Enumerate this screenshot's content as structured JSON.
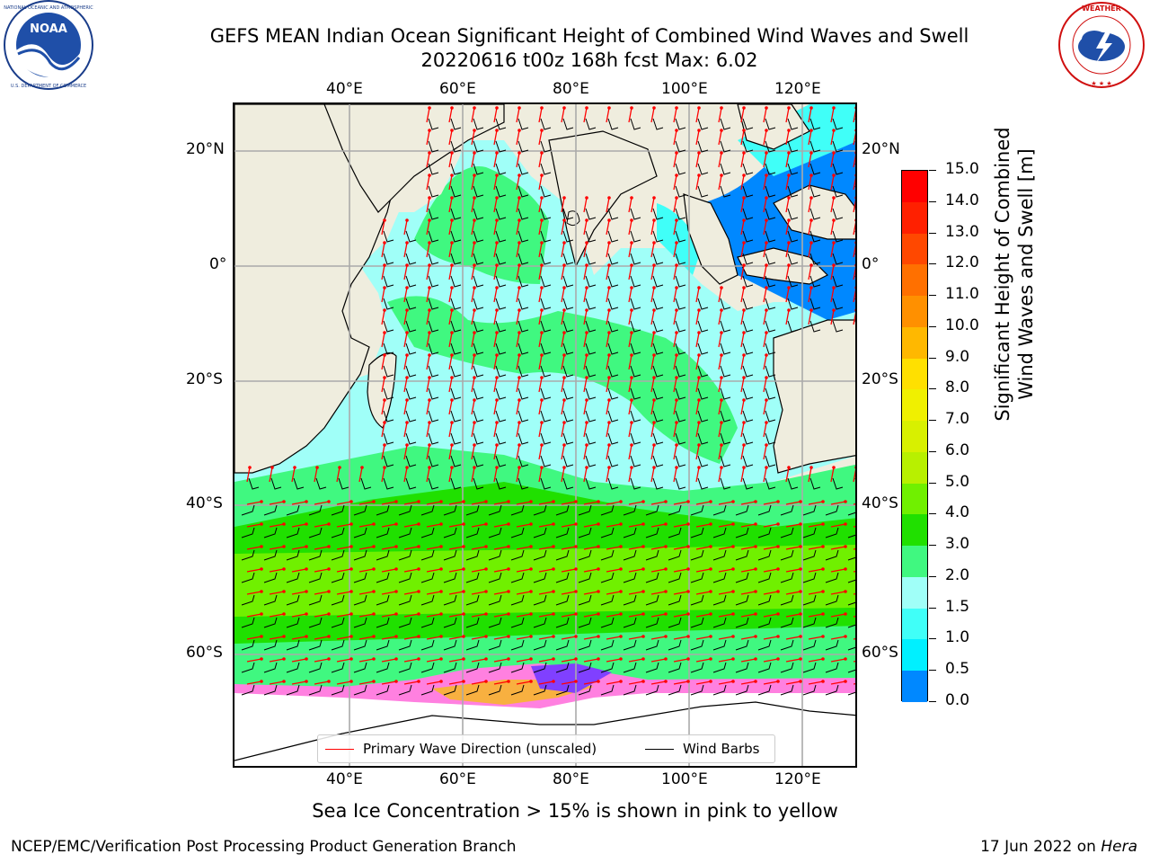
{
  "header": {
    "title_line1": "GEFS MEAN Indian Ocean Significant Height of Combined Wind Waves and Swell",
    "title_line2": "20220616 t00z 168h fcst   Max: 6.02"
  },
  "logos": {
    "noaa": {
      "center_text": "NOAA",
      "ring_text": "NATIONAL OCEANIC AND ATMOSPHERIC ADMINISTRATION · U.S. DEPARTMENT OF COMMERCE"
    },
    "nws": {
      "ring_text": "NATIONAL WEATHER SERVICE"
    }
  },
  "map": {
    "top_lon_labels": [
      "40°E",
      "60°E",
      "80°E",
      "100°E",
      "120°E"
    ],
    "bottom_lon_labels": [
      "40°E",
      "60°E",
      "80°E",
      "100°E",
      "120°E"
    ],
    "left_lat_labels": [
      "20°N",
      "0°",
      "20°S",
      "40°S",
      "60°S"
    ],
    "right_lat_labels": [
      "20°N",
      "0°",
      "20°S",
      "40°S",
      "60°S"
    ],
    "colors": {
      "land": "#efedde",
      "ice_white": "#ffffff",
      "grid": "#aaaaaa",
      "wave_arrow": "#ff0000",
      "wind_barb": "#000000"
    }
  },
  "legend": {
    "wave_label": "Primary Wave Direction (unscaled)",
    "wind_label": "Wind Barbs",
    "wave_color": "#ff0000",
    "wind_color": "#000000"
  },
  "colorbar": {
    "labels": [
      "15.0",
      "14.0",
      "13.0",
      "12.0",
      "11.0",
      "10.0",
      "9.0",
      "8.0",
      "7.0",
      "6.0",
      "5.0",
      "4.0",
      "3.0",
      "2.0",
      "1.5",
      "1.0",
      "0.5",
      "0.0"
    ],
    "colors": [
      "#ff0000",
      "#ff2000",
      "#ff4800",
      "#ff7000",
      "#ff9000",
      "#ffb800",
      "#ffe000",
      "#f0f000",
      "#d8f000",
      "#b8f000",
      "#70f000",
      "#20e000",
      "#40f880",
      "#a0fff8",
      "#40fff8",
      "#00f0ff",
      "#0088ff",
      "#0000ff"
    ],
    "title_line1": "Significant Height of Combined",
    "title_line2": "Wind Waves and Swell [m]"
  },
  "caption": "Sea Ice Concentration > 15% is shown in pink to yellow",
  "footer": {
    "left": "NCEP/EMC/Verification Post Processing Product Generation Branch",
    "date": "17 Jun 2022 on ",
    "machine": "Hera"
  }
}
